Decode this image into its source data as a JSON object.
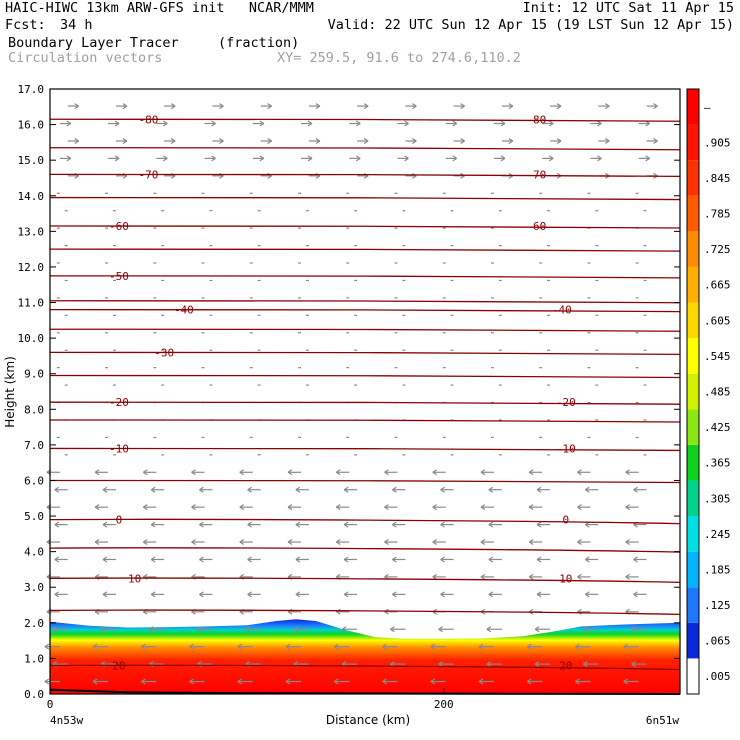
{
  "header": {
    "model_line": "HAIC-HIWC 13km ARW-GFS init   NCAR/MMM",
    "init": "Init: 12 UTC Sat 11 Apr 15",
    "fcst_label": "Fcst:",
    "fcst_value": "34 h",
    "valid": "Valid: 22 UTC Sun 12 Apr 15 (19 LST Sun 12 Apr 15)",
    "field_name": "Boundary Layer Tracer",
    "field_units": "(fraction)",
    "vector_label": "Circulation vectors",
    "xy_label": "XY= 259.5, 91.6 to 274.6,110.2"
  },
  "chart_data": {
    "type": "heatmap",
    "title": "Boundary Layer Tracer",
    "xlabel": "Distance (km)",
    "ylabel": "Height (km)",
    "xlim": [
      0,
      320
    ],
    "ylim": [
      0,
      17
    ],
    "x_ticks": [
      0,
      200
    ],
    "x_end_labels": [
      "4n53w",
      "6n51w"
    ],
    "y_ticks": [
      "0.0",
      "1.0",
      "2.0",
      "3.0",
      "4.0",
      "5.0",
      "6.0",
      "7.0",
      "8.0",
      "9.0",
      "10.0",
      "11.0",
      "12.0",
      "13.0",
      "14.0",
      "15.0",
      "16.0",
      "17.0"
    ],
    "colorbar": {
      "labels": [
        ".005",
        ".065",
        ".125",
        ".185",
        ".245",
        ".305",
        ".365",
        ".425",
        ".485",
        ".545",
        ".605",
        ".665",
        ".725",
        ".785",
        ".845",
        ".905",
        "–"
      ],
      "colors": [
        "#ffffff",
        "#0a28d8",
        "#1e78ff",
        "#00b4ff",
        "#00e0e0",
        "#00d28c",
        "#10d21e",
        "#8ce614",
        "#d2f000",
        "#ffff00",
        "#ffd700",
        "#ffaf00",
        "#ff8c00",
        "#ff5a00",
        "#ff3200",
        "#ff1400",
        "#ff0000"
      ]
    },
    "tracer_top_km": [
      [
        0,
        2.03
      ],
      [
        20,
        1.92
      ],
      [
        40,
        1.87
      ],
      [
        60,
        1.88
      ],
      [
        80,
        1.9
      ],
      [
        100,
        1.93
      ],
      [
        115,
        2.05
      ],
      [
        125,
        2.1
      ],
      [
        135,
        2.05
      ],
      [
        150,
        1.8
      ],
      [
        165,
        1.6
      ],
      [
        180,
        1.55
      ],
      [
        200,
        1.55
      ],
      [
        220,
        1.56
      ],
      [
        240,
        1.62
      ],
      [
        255,
        1.75
      ],
      [
        270,
        1.9
      ],
      [
        290,
        1.95
      ],
      [
        320,
        2.0
      ]
    ],
    "temperature_contours": [
      {
        "label": "-80",
        "z": 16.15,
        "label_x": [
          50,
          247
        ]
      },
      {
        "label": "-70",
        "z": 14.6,
        "label_x": [
          50,
          247
        ]
      },
      {
        "label": "-60",
        "z": 13.15,
        "label_x": [
          35,
          247
        ]
      },
      {
        "label": "-50",
        "z": 11.75,
        "label_x": [
          35,
          null
        ]
      },
      {
        "label": "-40",
        "z": 10.8,
        "label_x": [
          68,
          260
        ]
      },
      {
        "label": "-30",
        "z": 9.6,
        "label_x": [
          58,
          null
        ]
      },
      {
        "label": "-20",
        "z": 8.2,
        "label_x": [
          35,
          262
        ]
      },
      {
        "label": "-10",
        "z": 6.9,
        "label_x": [
          35,
          262
        ]
      },
      {
        "label": "0",
        "z": 4.9,
        "label_x": [
          35,
          262
        ]
      },
      {
        "label": "10",
        "z": 3.25,
        "label_x": [
          43,
          262
        ]
      },
      {
        "label": "20",
        "z": 0.8,
        "label_x": [
          35,
          262
        ]
      }
    ],
    "unlabeled_contours_z": [
      15.35,
      13.95,
      12.5,
      11.05,
      10.25,
      8.95,
      7.7,
      6.0,
      4.1,
      2.35
    ]
  }
}
